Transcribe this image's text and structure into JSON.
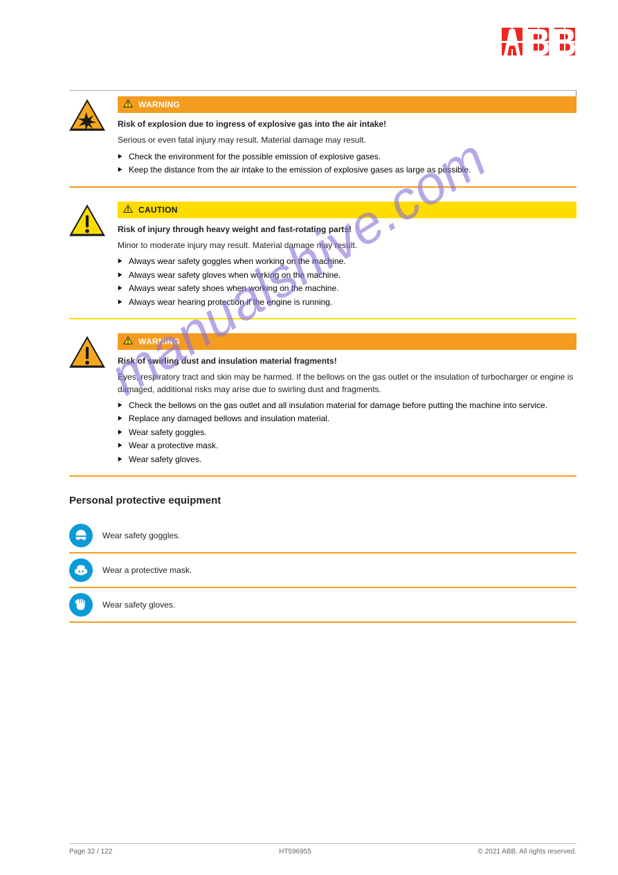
{
  "colors": {
    "brand_red": "#ee2722",
    "warning_orange_bar": "#f39c1f",
    "caution_yellow_bar": "#fddc00",
    "ppe_blue": "#0a9bd6",
    "text": "#222222",
    "footer_text": "#666666",
    "rule_gray": "#b0b0b0",
    "watermark": "#8a6fd6"
  },
  "hazards": [
    {
      "id": "explosion",
      "label": "WARNING",
      "bar_bg": "#f39c1f",
      "triangle": {
        "border": "#1a1a1a",
        "fill": "#f6a81c",
        "glyph": "explosion"
      },
      "lead": "Risk of explosion due to ingress of explosive gas into the air intake!",
      "body": "Serious or even fatal injury may result. Material damage may result.",
      "bullets": [
        "Check the environment for the possible emission of explosive gases.",
        "Keep the distance from the air intake to the emission of explosive gases as large as possible."
      ],
      "rule_color": "#f39c1f"
    },
    {
      "id": "caution-heavy",
      "label": "CAUTION",
      "bar_bg": "#fddc00",
      "triangle": {
        "border": "#1a1a1a",
        "fill": "#fddc00",
        "glyph": "exclaim"
      },
      "lead": "Risk of injury through heavy weight and fast-rotating parts!",
      "body": "Minor to moderate injury may result. Material damage may result.",
      "bullets": [
        "Always wear safety goggles when working on the machine.",
        "Always wear safety gloves when working on the machine.",
        "Always wear safety shoes when working on the machine.",
        "Always wear hearing protection if the engine is running."
      ],
      "rule_color": "#fddc00"
    },
    {
      "id": "swirl-dust",
      "label": "WARNING",
      "bar_bg": "#f39c1f",
      "triangle": {
        "border": "#1a1a1a",
        "fill": "#f6a81c",
        "glyph": "exclaim"
      },
      "lead": "Risk of swirling dust and insulation material fragments!",
      "body": "Eyes, respiratory tract and skin may be harmed. If the bellows on the gas outlet or the insulation of turbocharger or engine is damaged, additional risks may arise due to swirling dust and fragments.",
      "bullets": [
        "Check the bellows on the gas outlet and all insulation material for damage before putting the machine into service.",
        "Replace any damaged bellows and insulation material.",
        "Wear safety goggles.",
        "Wear a protective mask.",
        "Wear safety gloves."
      ],
      "rule_color": "#f39c1f"
    }
  ],
  "ppe_title": "Personal protective equipment",
  "ppe": [
    {
      "id": "goggles",
      "label": "Wear safety goggles."
    },
    {
      "id": "mask",
      "label": "Wear a protective mask."
    },
    {
      "id": "gloves",
      "label": "Wear safety gloves."
    }
  ],
  "footer": {
    "left": "Page 32 / 122",
    "center": "HT596955",
    "right": "© 2021 ABB. All rights reserved."
  },
  "watermark": "manualshive.com"
}
